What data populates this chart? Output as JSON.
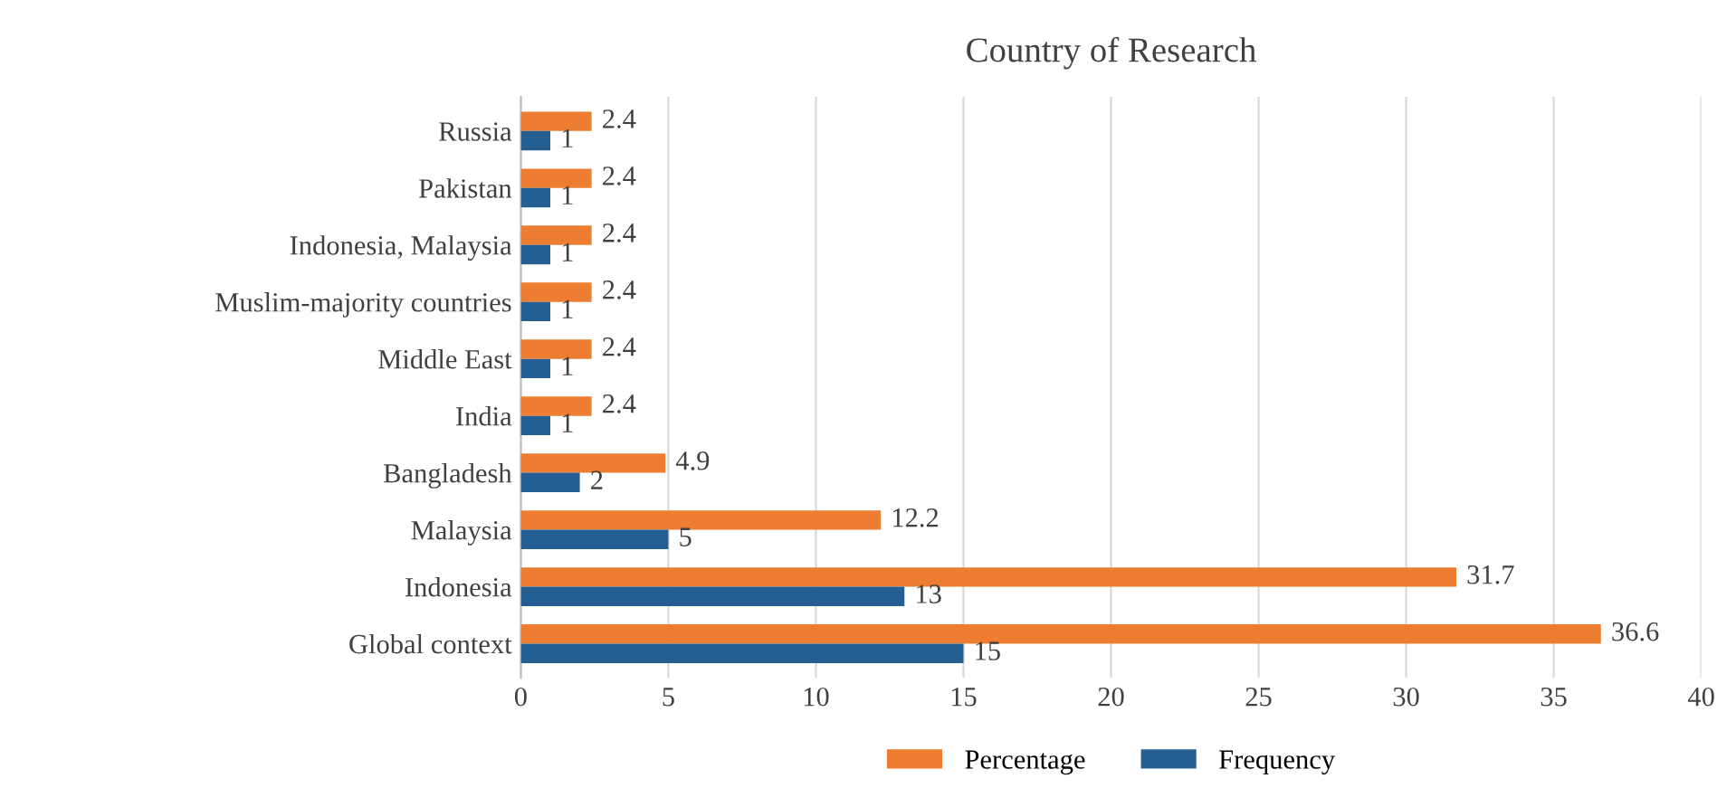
{
  "chart_data": {
    "type": "bar",
    "orientation": "horizontal",
    "title": "Country of Research",
    "categories": [
      "Russia",
      "Pakistan",
      "Indonesia, Malaysia",
      "Muslim-majority countries",
      "Middle East",
      "India",
      "Bangladesh",
      "Malaysia",
      "Indonesia",
      "Global context"
    ],
    "series": [
      {
        "name": "Percentage",
        "color": "#ed7d31",
        "values": [
          2.4,
          2.4,
          2.4,
          2.4,
          2.4,
          2.4,
          4.9,
          12.2,
          31.7,
          36.6
        ]
      },
      {
        "name": "Frequency",
        "color": "#255e91",
        "values": [
          1,
          1,
          1,
          1,
          1,
          1,
          2,
          5,
          13,
          15
        ]
      }
    ],
    "xlim": [
      0,
      40
    ],
    "xticks": [
      0,
      5,
      10,
      15,
      20,
      25,
      30,
      35,
      40
    ],
    "grid": "x",
    "legend": "bottom",
    "data_labels": true
  }
}
